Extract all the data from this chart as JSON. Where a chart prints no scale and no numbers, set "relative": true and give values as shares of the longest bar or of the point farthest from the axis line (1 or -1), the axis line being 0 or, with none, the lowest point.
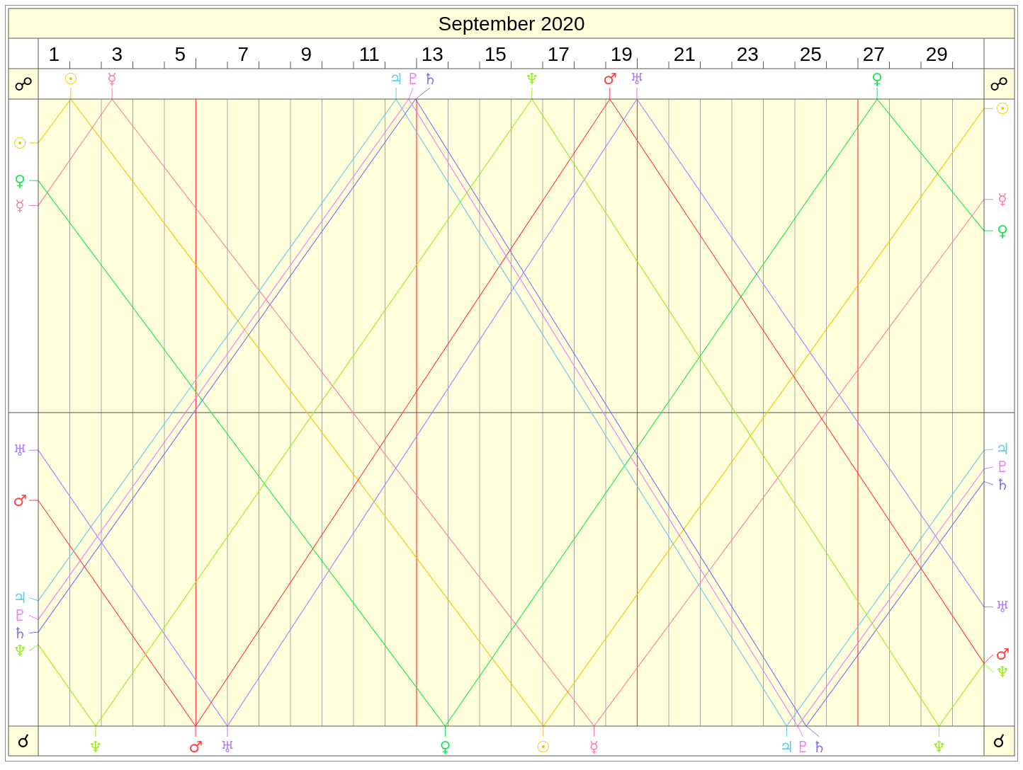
{
  "chart_data": {
    "type": "line",
    "title": "September 2020",
    "relative": true,
    "xlim": [
      0.5,
      30.5
    ],
    "xticks": [
      1,
      {
        "value": 1.5,
        "label": null
      },
      {
        "value": 2.5,
        "label": null
      },
      3,
      {
        "value": 3.5,
        "label": null
      },
      {
        "value": 4.5,
        "label": null
      },
      5,
      {
        "value": 6.5,
        "label": null
      },
      7,
      {
        "value": 7.5,
        "label": null
      },
      {
        "value": 8.5,
        "label": null
      },
      9,
      {
        "value": 9.5,
        "label": null
      },
      {
        "value": 10.5,
        "label": null
      },
      11,
      {
        "value": 11.5,
        "label": null
      },
      13,
      {
        "value": 13.5,
        "label": null
      },
      {
        "value": 14.5,
        "label": null
      },
      15,
      {
        "value": 15.5,
        "label": null
      },
      {
        "value": 16.5,
        "label": null
      },
      17,
      {
        "value": 17.5,
        "label": null
      },
      {
        "value": 18.5,
        "label": null
      },
      19,
      {
        "value": 20.5,
        "label": null
      },
      21,
      {
        "value": 21.5,
        "label": null
      },
      {
        "value": 22.5,
        "label": null
      },
      23,
      {
        "value": 23.5,
        "label": null
      },
      {
        "value": 24.5,
        "label": null
      },
      25,
      {
        "value": 25.5,
        "label": null
      },
      27,
      {
        "value": 27.5,
        "label": null
      },
      {
        "value": 28.5,
        "label": null
      },
      29,
      {
        "value": 29.5,
        "label": null
      }
    ],
    "grid": "x",
    "legend": "bottom",
    "ref_lines": [
      {
        "axis": "x",
        "value": 5.5,
        "color": "#ff3b3b"
      },
      {
        "axis": "x",
        "value": 12.5,
        "color": "#ff3b3b"
      },
      {
        "axis": "x",
        "value": 19.5,
        "color": "#ff3b3b"
      },
      {
        "axis": "x",
        "value": 26.5,
        "color": "#ff3b3b"
      },
      {
        "axis": "y",
        "value": 0.5,
        "color": "#555555"
      }
    ],
    "annotations": [
      "☍",
      "☍",
      "☌",
      "☌"
    ],
    "series": [
      {
        "name": "☉",
        "color": "#f0c800",
        "x": [
          0.5,
          1.53,
          16.52,
          30.5
        ],
        "values": [
          0.93,
          1,
          0,
          0.985
        ]
      },
      {
        "name": "☿",
        "color": "#ff7aa8",
        "x": [
          0.5,
          2.84,
          18.13,
          30.5
        ],
        "values": [
          0.83,
          1,
          0,
          0.84
        ]
      },
      {
        "name": "♀",
        "color": "#1ee650",
        "x": [
          0.5,
          13.41,
          27.11,
          30.5
        ],
        "values": [
          0.87,
          0,
          1,
          0.79
        ]
      },
      {
        "name": "♂",
        "color": "#ff4040",
        "x": [
          0.5,
          5.49,
          18.63,
          30.5
        ],
        "values": [
          0.36,
          0,
          1,
          0.1
        ]
      },
      {
        "name": "♃",
        "color": "#66ccf0",
        "x": [
          0.5,
          11.85,
          24.24,
          30.5
        ],
        "values": [
          0.2,
          1,
          0,
          0.44
        ]
      },
      {
        "name": "♄",
        "color": "#7878f0",
        "x": [
          0.5,
          12.47,
          24.86,
          30.5
        ],
        "values": [
          0.15,
          1,
          0,
          0.39
        ]
      },
      {
        "name": "♅",
        "color": "#b080ff",
        "x": [
          0.5,
          6.5,
          19.49,
          30.5
        ],
        "values": [
          0.44,
          0,
          1,
          0.19
        ]
      },
      {
        "name": "♆",
        "color": "#98ee20",
        "x": [
          0.5,
          2.32,
          16.16,
          29.07,
          30.5
        ],
        "values": [
          0.13,
          0,
          1,
          0,
          0.1
        ]
      },
      {
        "name": "♇",
        "color": "#f07cf0",
        "x": [
          0.5,
          12.25,
          24.59,
          30.5
        ],
        "values": [
          0.17,
          1,
          0,
          0.41
        ]
      }
    ]
  }
}
